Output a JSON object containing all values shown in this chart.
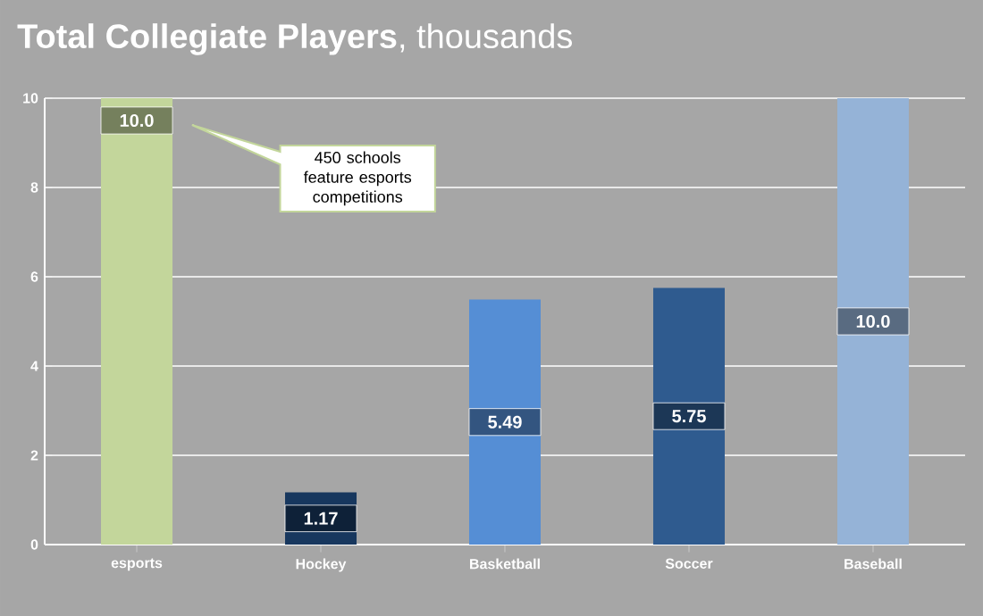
{
  "chart_data": {
    "type": "bar",
    "title": "**Total Collegiate Players**, thousands",
    "categories": [
      "esports",
      "Hockey",
      "Basketball",
      "Soccer",
      "Baseball"
    ],
    "values": [
      10.0,
      1.17,
      5.49,
      5.75,
      10.0
    ],
    "colors": [
      "#c3d69b",
      "#17375e",
      "#558ed5",
      "#2f5b8f",
      "#95b3d7"
    ],
    "value_labels": [
      "10.0",
      "1.17",
      "5.49",
      "5.75",
      "10.0"
    ],
    "ylim": [
      0,
      10
    ],
    "yticks": [
      0,
      2,
      4,
      6,
      8,
      10
    ],
    "grid": "y",
    "annotations": [
      "450 schools feature esports competitions"
    ]
  }
}
